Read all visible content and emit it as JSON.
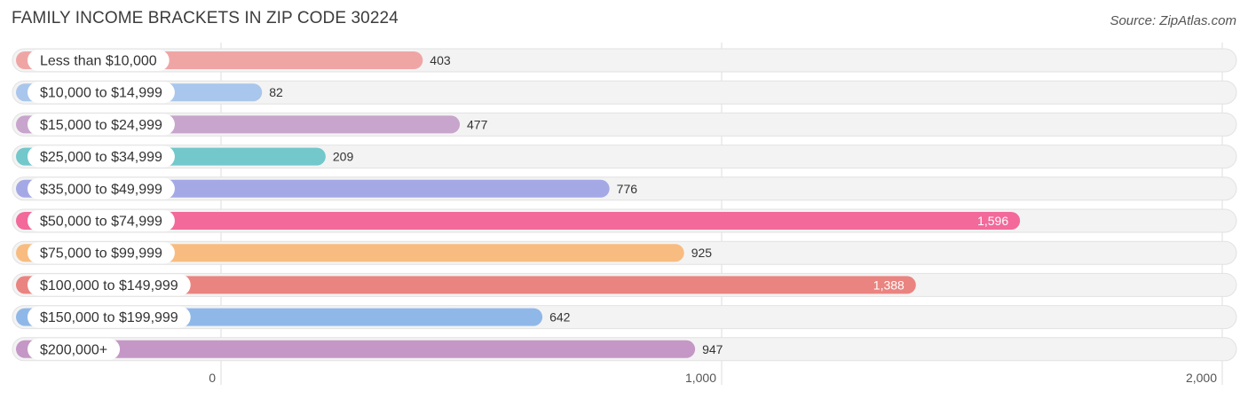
{
  "title": "FAMILY INCOME BRACKETS IN ZIP CODE 30224",
  "source": "Source: ZipAtlas.com",
  "chart_data": {
    "type": "bar",
    "orientation": "horizontal",
    "title": "FAMILY INCOME BRACKETS IN ZIP CODE 30224",
    "categories": [
      "Less than $10,000",
      "$10,000 to $14,999",
      "$15,000 to $24,999",
      "$25,000 to $34,999",
      "$35,000 to $49,999",
      "$50,000 to $74,999",
      "$75,000 to $99,999",
      "$100,000 to $149,999",
      "$150,000 to $199,999",
      "$200,000+"
    ],
    "values": [
      403,
      82,
      477,
      209,
      776,
      1596,
      925,
      1388,
      642,
      947
    ],
    "value_labels": [
      "403",
      "82",
      "477",
      "209",
      "776",
      "1,596",
      "925",
      "1,388",
      "642",
      "947"
    ],
    "colors": [
      "#f0a5a5",
      "#a9c6ec",
      "#c8a5cc",
      "#72c8cb",
      "#a4a9e6",
      "#f2699a",
      "#f8bc80",
      "#ea8480",
      "#8fb8e8",
      "#c497c6"
    ],
    "xlim": [
      0,
      2000
    ],
    "xticks": [
      0,
      1000,
      2000
    ],
    "xtick_labels": [
      "0",
      "1,000",
      "2,000"
    ],
    "grid": true
  }
}
